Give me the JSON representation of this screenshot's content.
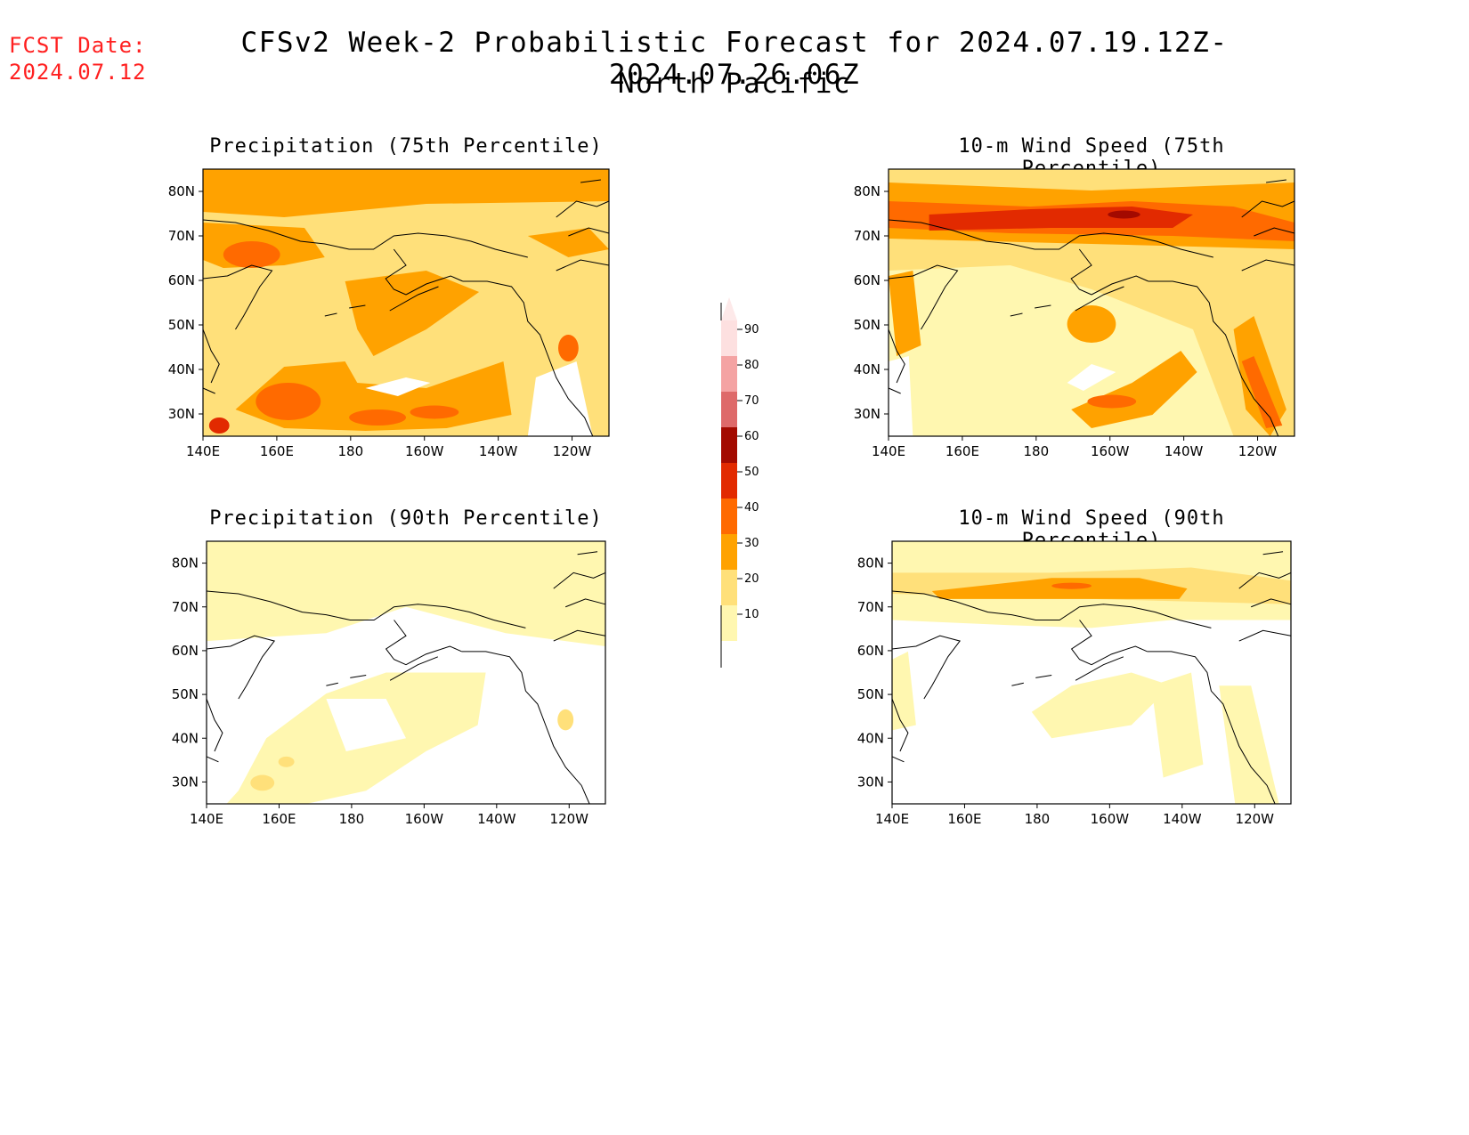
{
  "header": {
    "fcst_label": "FCST Date:",
    "fcst_date": "2024.07.12",
    "title": "CFSv2 Week-2 Probabilistic Forecast for 2024.07.19.12Z-2024.07.26.06Z",
    "subtitle": "North Pacific"
  },
  "axes": {
    "lon_ticks": [
      "140E",
      "160E",
      "180",
      "160W",
      "140W",
      "120W"
    ],
    "lat_ticks": [
      "80N",
      "70N",
      "60N",
      "50N",
      "40N",
      "30N"
    ]
  },
  "colorbar": {
    "levels": [
      "90",
      "80",
      "70",
      "60",
      "50",
      "40",
      "30",
      "20",
      "10"
    ],
    "colors": [
      "#fde0e0",
      "#f4a3a3",
      "#de6a6a",
      "#a30a00",
      "#e22a00",
      "#ff6a00",
      "#ffa200",
      "#ffe07a",
      "#fff7b0"
    ]
  },
  "panels": [
    {
      "id": "precip75",
      "title": "Precipitation (75th Percentile)"
    },
    {
      "id": "wind75",
      "title": "10-m Wind Speed (75th Percentile)"
    },
    {
      "id": "precip90",
      "title": "Precipitation (90th Percentile)"
    },
    {
      "id": "wind90",
      "title": "10-m Wind Speed (90th Percentile)"
    }
  ]
}
